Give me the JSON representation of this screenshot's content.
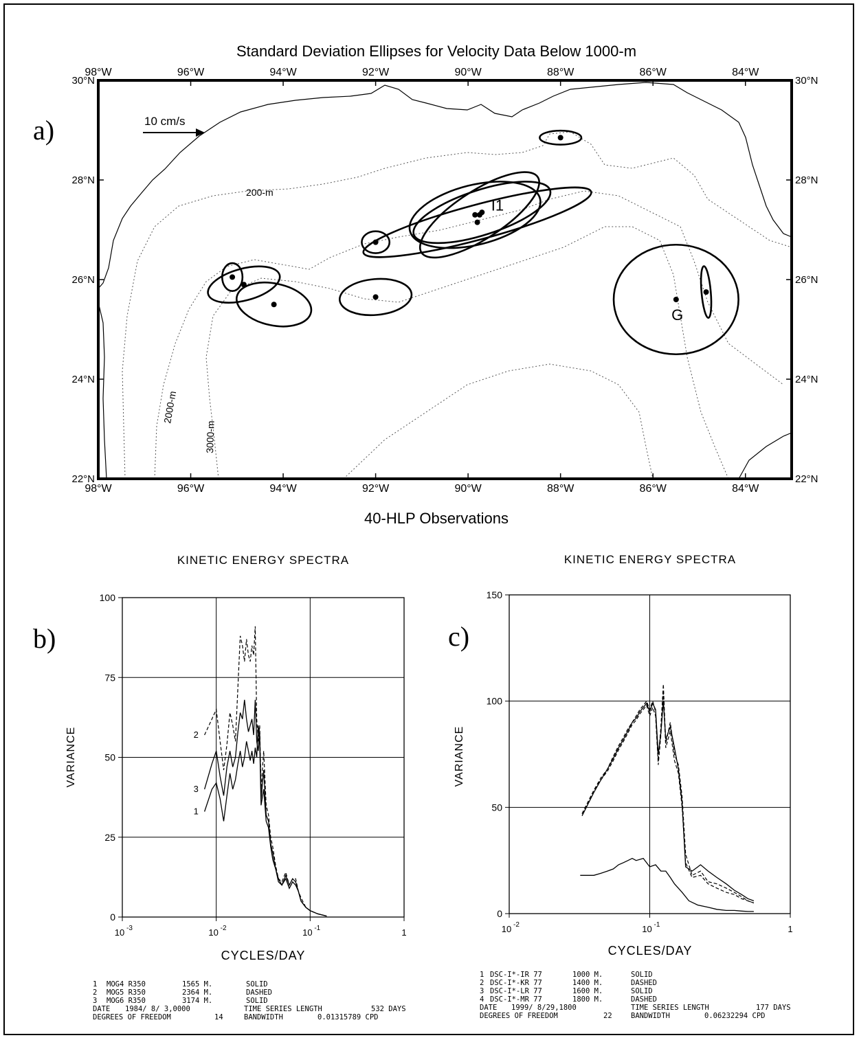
{
  "chart_data": [
    {
      "panel": "a)",
      "type": "scatter",
      "title": "Standard Deviation Ellipses for Velocity Data Below 1000-m",
      "xlabel": "40-HLP Observations",
      "xlim": [
        -98,
        -83
      ],
      "ylim": [
        22,
        30
      ],
      "x_tick_labels": [
        "98°W",
        "96°W",
        "94°W",
        "92°W",
        "90°W",
        "88°W",
        "86°W",
        "84°W"
      ],
      "x_tick_values": [
        -98,
        -96,
        -94,
        -92,
        -90,
        -88,
        -86,
        -84
      ],
      "y_tick_labels": [
        "22°N",
        "24°N",
        "26°N",
        "28°N",
        "30°N"
      ],
      "y_tick_values": [
        22,
        24,
        26,
        28,
        30
      ],
      "scale_arrow_label": "10 cm/s",
      "contour_labels": [
        "200-m",
        "2000-m",
        "3000-m"
      ],
      "site_labels": [
        {
          "text": "I1",
          "lon": -89.5,
          "lat": 27.5
        },
        {
          "text": "G",
          "lon": -85.6,
          "lat": 25.3
        }
      ],
      "stations": [
        {
          "lon": -88.0,
          "lat": 28.85,
          "a": 0.45,
          "b": 0.14,
          "angle": 0
        },
        {
          "lon": -89.85,
          "lat": 27.3,
          "a": 1.45,
          "b": 0.6,
          "angle": -14
        },
        {
          "lon": -89.7,
          "lat": 27.35,
          "a": 1.55,
          "b": 0.45,
          "angle": -18
        },
        {
          "lon": -89.75,
          "lat": 27.3,
          "a": 1.5,
          "b": 0.48,
          "angle": -33
        },
        {
          "lon": -89.8,
          "lat": 27.15,
          "a": 2.55,
          "b": 0.35,
          "angle": -15
        },
        {
          "lon": -92.0,
          "lat": 26.75,
          "a": 0.3,
          "b": 0.22,
          "angle": 0
        },
        {
          "lon": -92.0,
          "lat": 25.65,
          "a": 0.78,
          "b": 0.36,
          "angle": -5
        },
        {
          "lon": -95.1,
          "lat": 26.05,
          "a": 0.22,
          "b": 0.28,
          "angle": 0
        },
        {
          "lon": -94.85,
          "lat": 25.9,
          "a": 0.8,
          "b": 0.32,
          "angle": -15
        },
        {
          "lon": -94.2,
          "lat": 25.5,
          "a": 0.82,
          "b": 0.42,
          "angle": 12
        },
        {
          "lon": -85.5,
          "lat": 25.6,
          "a": 1.35,
          "b": 1.1,
          "angle": 0
        },
        {
          "lon": -84.85,
          "lat": 25.75,
          "a": 0.1,
          "b": 0.52,
          "angle": -5
        }
      ]
    },
    {
      "panel": "b)",
      "type": "line",
      "title": "KINETIC ENERGY SPECTRA",
      "xlabel": "CYCLES/DAY",
      "ylabel": "VARIANCE",
      "x_scale": "log",
      "xlim": [
        0.001,
        1
      ],
      "ylim": [
        0,
        100
      ],
      "x_tick_labels": [
        "10",
        "-3",
        "10",
        "-2",
        "10",
        "-1",
        "1"
      ],
      "y_tick_labels": [
        "0",
        "25",
        "50",
        "75",
        "100"
      ],
      "series": [
        {
          "name": "1",
          "style": "solid",
          "x": [
            0.0075,
            0.009,
            0.01,
            0.011,
            0.012,
            0.013,
            0.014,
            0.015,
            0.016,
            0.017,
            0.018,
            0.019,
            0.02,
            0.021,
            0.022,
            0.023,
            0.024,
            0.025,
            0.026,
            0.027,
            0.028,
            0.029,
            0.03,
            0.032,
            0.034,
            0.036,
            0.038,
            0.04,
            0.043,
            0.046,
            0.05,
            0.055,
            0.06,
            0.065,
            0.07,
            0.075,
            0.08,
            0.09,
            0.1,
            0.12,
            0.15
          ],
          "y": [
            33,
            40,
            42,
            37,
            30,
            38,
            45,
            40,
            43,
            48,
            52,
            47,
            50,
            55,
            52,
            49,
            52,
            48,
            53,
            50,
            60,
            55,
            35,
            40,
            30,
            28,
            22,
            18,
            15,
            11,
            10,
            12,
            9,
            11,
            10,
            8,
            5,
            3,
            2,
            1,
            0.3
          ]
        },
        {
          "name": "2",
          "style": "dashed",
          "x": [
            0.0075,
            0.009,
            0.01,
            0.011,
            0.012,
            0.013,
            0.014,
            0.015,
            0.016,
            0.017,
            0.018,
            0.019,
            0.02,
            0.021,
            0.022,
            0.023,
            0.024,
            0.025,
            0.026,
            0.027,
            0.028,
            0.029,
            0.03,
            0.032,
            0.034,
            0.036,
            0.038,
            0.04,
            0.043,
            0.046,
            0.05,
            0.055,
            0.06,
            0.065,
            0.07,
            0.075,
            0.08,
            0.09,
            0.1,
            0.12,
            0.15
          ],
          "y": [
            57,
            62,
            65,
            55,
            46,
            54,
            64,
            60,
            55,
            72,
            88,
            85,
            80,
            87,
            82,
            80,
            85,
            82,
            91,
            62,
            55,
            60,
            40,
            52,
            35,
            32,
            25,
            22,
            16,
            12,
            11,
            14,
            10,
            12,
            12,
            8,
            6,
            3,
            2,
            1,
            0.3
          ]
        },
        {
          "name": "3",
          "style": "solid",
          "x": [
            0.0075,
            0.009,
            0.01,
            0.011,
            0.012,
            0.013,
            0.014,
            0.015,
            0.016,
            0.017,
            0.018,
            0.019,
            0.02,
            0.021,
            0.022,
            0.023,
            0.024,
            0.025,
            0.026,
            0.027,
            0.028,
            0.029,
            0.03,
            0.032,
            0.034,
            0.036,
            0.038,
            0.04,
            0.043,
            0.046,
            0.05,
            0.055,
            0.06,
            0.065,
            0.07,
            0.075,
            0.08,
            0.09,
            0.1,
            0.12,
            0.15
          ],
          "y": [
            40,
            48,
            52,
            44,
            38,
            47,
            52,
            47,
            50,
            58,
            64,
            62,
            68,
            62,
            58,
            60,
            62,
            57,
            68,
            55,
            52,
            58,
            37,
            46,
            32,
            30,
            23,
            20,
            15,
            12,
            10,
            13,
            10,
            12,
            11,
            8,
            5,
            3,
            2,
            1,
            0.3
          ]
        }
      ],
      "curve_labels": [
        "1",
        "2",
        "3"
      ],
      "legend_rows": [
        [
          "1",
          "MOG4 R350",
          "1565 M.",
          "SOLID"
        ],
        [
          "2",
          "MOG5 R350",
          "2364 M.",
          "DASHED"
        ],
        [
          "3",
          "MOG6 R350",
          "3174 M.",
          "SOLID"
        ]
      ],
      "footer_rows": [
        [
          "DATE",
          "1984/ 8/ 3,0000",
          "TIME SERIES LENGTH",
          "532 DAYS"
        ],
        [
          "DEGREES OF FREEDOM",
          "14",
          "BANDWIDTH",
          "0.01315789 CPD"
        ]
      ]
    },
    {
      "panel": "c)",
      "type": "line",
      "title": "KINETIC ENERGY SPECTRA",
      "xlabel": "CYCLES/DAY",
      "ylabel": "VARIANCE",
      "x_scale": "log",
      "xlim": [
        0.01,
        1
      ],
      "ylim": [
        0,
        150
      ],
      "x_tick_labels": [
        "10",
        "-2",
        "10",
        "-1",
        "1"
      ],
      "y_tick_labels": [
        "0",
        "50",
        "100",
        "150"
      ],
      "series": [
        {
          "name": "1",
          "style": "solid",
          "x": [
            0.032,
            0.036,
            0.04,
            0.045,
            0.05,
            0.055,
            0.06,
            0.065,
            0.07,
            0.075,
            0.08,
            0.09,
            0.1,
            0.11,
            0.12,
            0.13,
            0.14,
            0.15,
            0.17,
            0.19,
            0.22,
            0.26,
            0.3,
            0.35,
            0.4,
            0.45,
            0.5,
            0.55
          ],
          "y": [
            18,
            18,
            18,
            19,
            20,
            21,
            23,
            24,
            25,
            26,
            25,
            26,
            22,
            23,
            20,
            20,
            17,
            14,
            10,
            6,
            4,
            3,
            2,
            1.5,
            1.5,
            1.2,
            1,
            1
          ]
        },
        {
          "name": "2",
          "style": "dashed",
          "x": [
            0.033,
            0.036,
            0.04,
            0.045,
            0.05,
            0.055,
            0.06,
            0.065,
            0.07,
            0.075,
            0.08,
            0.085,
            0.09,
            0.095,
            0.1,
            0.105,
            0.11,
            0.115,
            0.12,
            0.125,
            0.13,
            0.14,
            0.15,
            0.16,
            0.17,
            0.18,
            0.2,
            0.23,
            0.26,
            0.3,
            0.35,
            0.4,
            0.45,
            0.5,
            0.55
          ],
          "y": [
            47,
            52,
            58,
            64,
            68,
            74,
            79,
            83,
            87,
            90,
            93,
            96,
            98,
            100,
            96,
            100,
            95,
            72,
            88,
            108,
            80,
            90,
            75,
            70,
            55,
            28,
            18,
            20,
            15,
            14,
            12,
            10,
            8,
            6,
            5
          ]
        },
        {
          "name": "3",
          "style": "solid",
          "x": [
            0.033,
            0.036,
            0.04,
            0.045,
            0.05,
            0.055,
            0.06,
            0.065,
            0.07,
            0.075,
            0.08,
            0.085,
            0.09,
            0.095,
            0.1,
            0.105,
            0.11,
            0.115,
            0.12,
            0.125,
            0.13,
            0.14,
            0.15,
            0.16,
            0.17,
            0.18,
            0.2,
            0.23,
            0.26,
            0.3,
            0.35,
            0.4,
            0.45,
            0.5,
            0.55
          ],
          "y": [
            46,
            51,
            57,
            63,
            68,
            73,
            78,
            82,
            86,
            90,
            92,
            95,
            97,
            99,
            95,
            99,
            96,
            75,
            85,
            100,
            82,
            88,
            78,
            68,
            52,
            22,
            20,
            23,
            20,
            17,
            14,
            11,
            9,
            7,
            6
          ]
        },
        {
          "name": "4",
          "style": "dashed",
          "x": [
            0.033,
            0.036,
            0.04,
            0.045,
            0.05,
            0.055,
            0.06,
            0.065,
            0.07,
            0.075,
            0.08,
            0.085,
            0.09,
            0.095,
            0.1,
            0.105,
            0.11,
            0.115,
            0.12,
            0.125,
            0.13,
            0.14,
            0.15,
            0.16,
            0.17,
            0.18,
            0.2,
            0.23,
            0.26,
            0.3,
            0.35,
            0.4,
            0.45,
            0.5,
            0.55
          ],
          "y": [
            47,
            52,
            58,
            63,
            67,
            72,
            77,
            81,
            85,
            89,
            91,
            94,
            96,
            98,
            93,
            97,
            93,
            70,
            84,
            104,
            78,
            86,
            72,
            66,
            50,
            24,
            17,
            18,
            14,
            12,
            10,
            9,
            7,
            6,
            5
          ]
        }
      ],
      "legend_rows": [
        [
          "1",
          "DSC-I*-IR 77",
          "1000 M.",
          "SOLID"
        ],
        [
          "2",
          "DSC-I*-KR 77",
          "1400 M.",
          "DASHED"
        ],
        [
          "3",
          "DSC-I*-LR 77",
          "1600 M.",
          "SOLID"
        ],
        [
          "4",
          "DSC-I*-MR 77",
          "1800 M.",
          "DASHED"
        ]
      ],
      "footer_rows": [
        [
          "DATE",
          "1999/ 8/29,1800",
          "TIME SERIES LENGTH",
          "177 DAYS"
        ],
        [
          "DEGREES OF FREEDOM",
          "22",
          "BANDWIDTH",
          "0.06232294 CPD"
        ]
      ]
    }
  ]
}
